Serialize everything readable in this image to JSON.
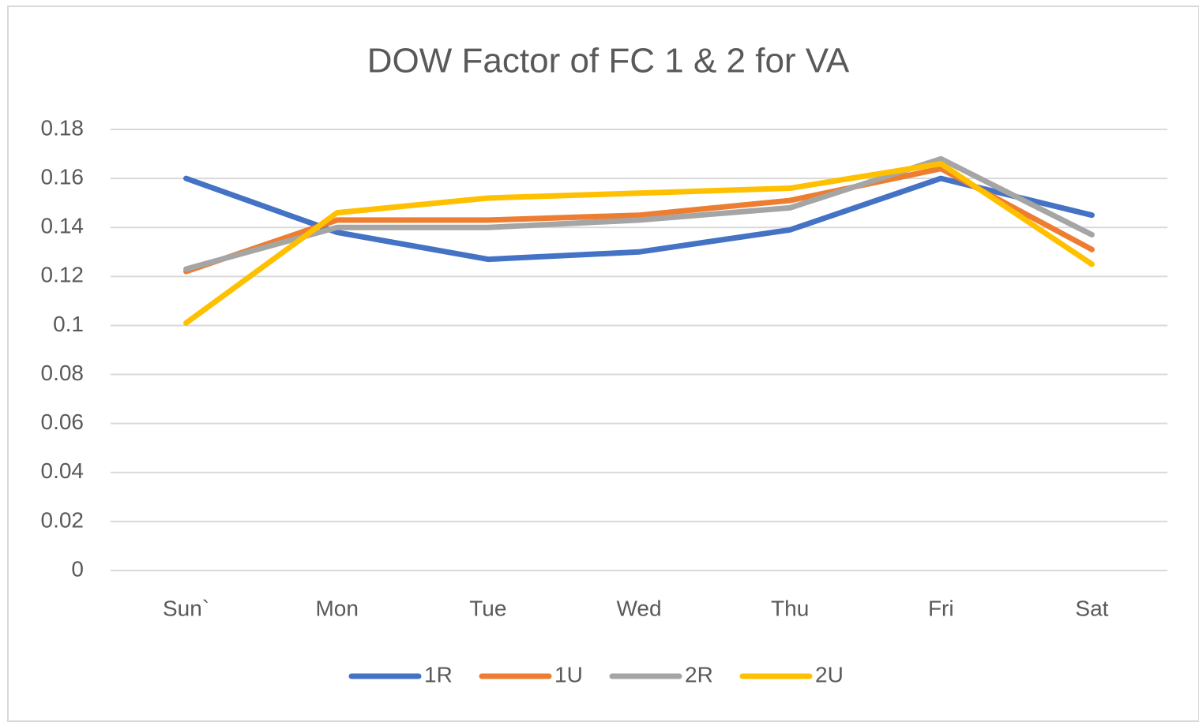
{
  "chart_data": {
    "type": "line",
    "title": "DOW Factor of FC 1 & 2 for VA",
    "categories": [
      "Sun`",
      "Mon",
      "Tue",
      "Wed",
      "Thu",
      "Fri",
      "Sat"
    ],
    "series": [
      {
        "name": "1R",
        "color": "#4472c4",
        "values": [
          0.16,
          0.138,
          0.127,
          0.13,
          0.139,
          0.16,
          0.145
        ]
      },
      {
        "name": "1U",
        "color": "#ed7d31",
        "values": [
          0.122,
          0.143,
          0.143,
          0.145,
          0.151,
          0.164,
          0.131
        ]
      },
      {
        "name": "2R",
        "color": "#a5a5a5",
        "values": [
          0.123,
          0.14,
          0.14,
          0.143,
          0.148,
          0.168,
          0.137
        ]
      },
      {
        "name": "2U",
        "color": "#ffc000",
        "values": [
          0.101,
          0.146,
          0.152,
          0.154,
          0.156,
          0.166,
          0.125
        ]
      }
    ],
    "ylim": [
      0,
      0.18
    ],
    "yticks": [
      0,
      0.02,
      0.04,
      0.06,
      0.08,
      0.1,
      0.12,
      0.14,
      0.16,
      0.18
    ],
    "grid": true,
    "legend": "bottom"
  }
}
